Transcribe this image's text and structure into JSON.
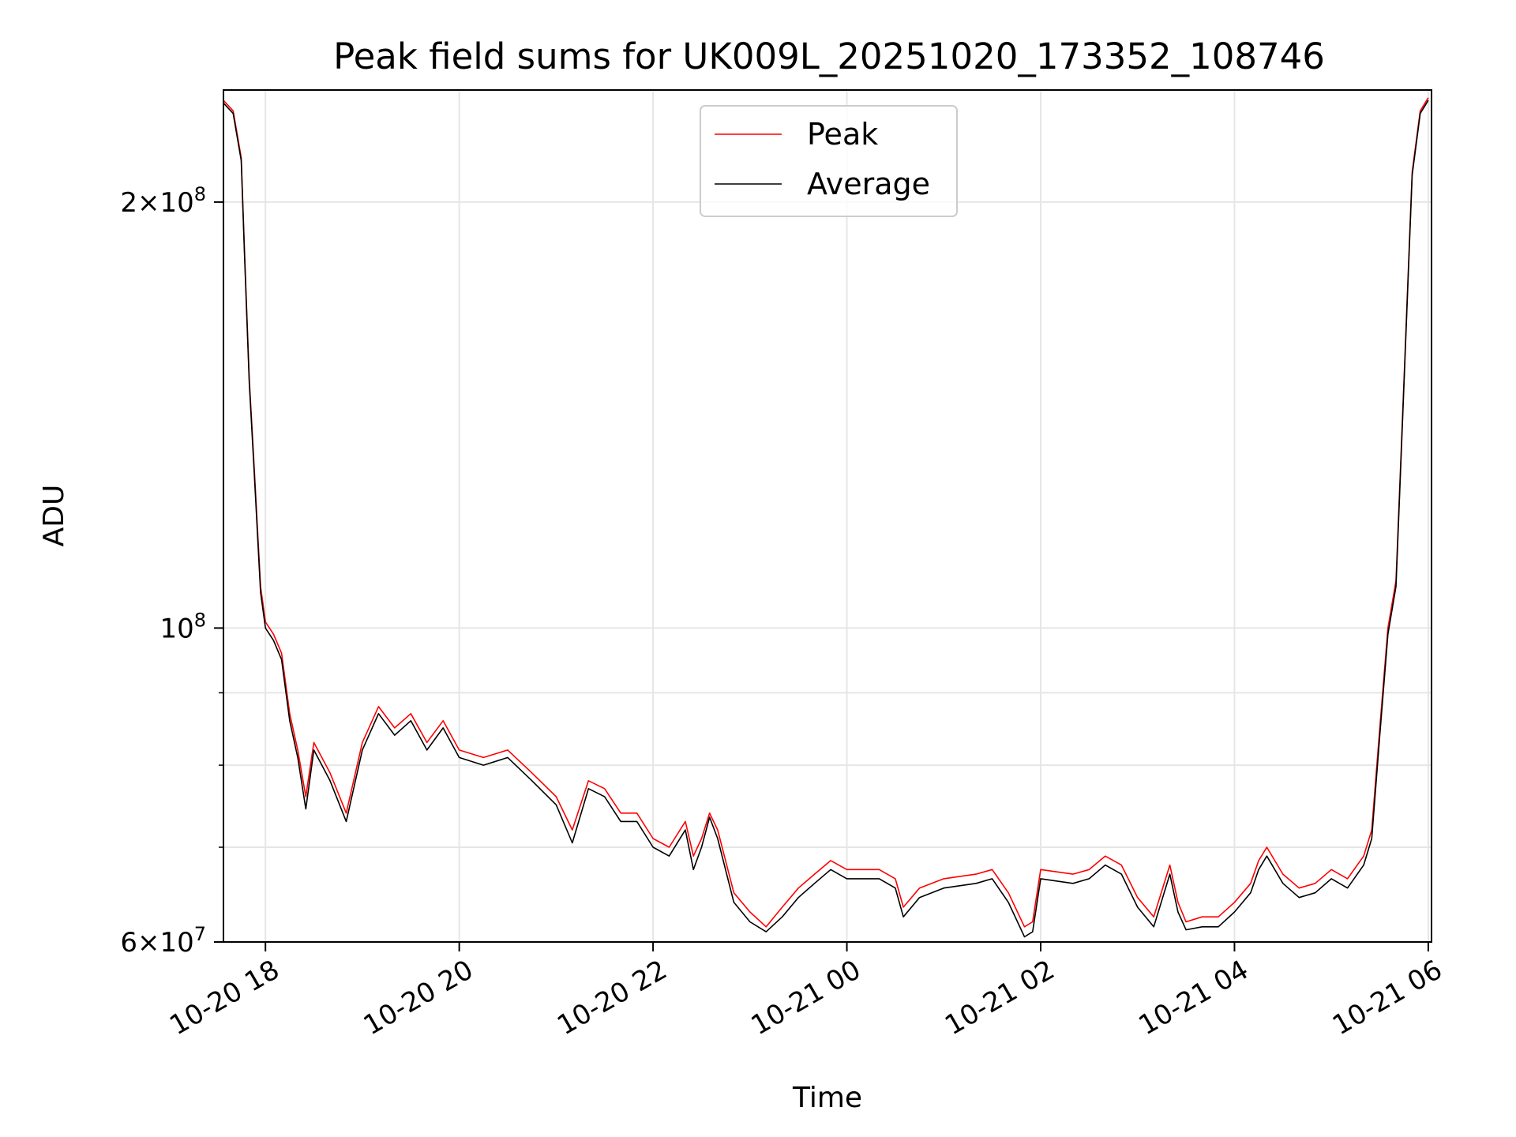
{
  "chart_data": {
    "type": "line",
    "title": "Peak field sums for UK009L_20251020_173352_108746",
    "xlabel": "Time",
    "ylabel": "ADU",
    "y_scale": "log",
    "ylim": [
      60000000,
      240000000
    ],
    "xlim": [
      "2025-10-20 17:34",
      "2025-10-21 06:02"
    ],
    "grid": true,
    "legend_position": "top-center",
    "x_ticks": [
      {
        "value": "2025-10-20 18:00",
        "label": "10-20 18"
      },
      {
        "value": "2025-10-20 20:00",
        "label": "10-20 20"
      },
      {
        "value": "2025-10-20 22:00",
        "label": "10-20 22"
      },
      {
        "value": "2025-10-21 00:00",
        "label": "10-21 00"
      },
      {
        "value": "2025-10-21 02:00",
        "label": "10-21 02"
      },
      {
        "value": "2025-10-21 04:00",
        "label": "10-21 04"
      },
      {
        "value": "2025-10-21 06:00",
        "label": "10-21 06"
      }
    ],
    "y_ticks": [
      {
        "value": 60000000,
        "label": "6×10",
        "exp": "7"
      },
      {
        "value": 100000000,
        "label": "10",
        "exp": "8"
      },
      {
        "value": 200000000,
        "label": "2×10",
        "exp": "8"
      }
    ],
    "y_minor_ticks": [
      70000000,
      80000000,
      90000000
    ],
    "series": [
      {
        "name": "Peak",
        "color": "#ff0000",
        "points": [
          [
            "2025-10-20 17:34",
            236000000
          ],
          [
            "2025-10-20 17:40",
            232000000
          ],
          [
            "2025-10-20 17:45",
            215000000
          ],
          [
            "2025-10-20 17:47",
            185000000
          ],
          [
            "2025-10-20 17:50",
            150000000
          ],
          [
            "2025-10-20 17:53",
            130000000
          ],
          [
            "2025-10-20 17:57",
            107000000
          ],
          [
            "2025-10-20 18:00",
            101000000
          ],
          [
            "2025-10-20 18:05",
            99000000
          ],
          [
            "2025-10-20 18:10",
            96000000
          ],
          [
            "2025-10-20 18:15",
            87000000
          ],
          [
            "2025-10-20 18:20",
            82000000
          ],
          [
            "2025-10-20 18:25",
            76000000
          ],
          [
            "2025-10-20 18:30",
            83000000
          ],
          [
            "2025-10-20 18:40",
            79000000
          ],
          [
            "2025-10-20 18:50",
            74000000
          ],
          [
            "2025-10-20 19:00",
            83000000
          ],
          [
            "2025-10-20 19:10",
            88000000
          ],
          [
            "2025-10-20 19:20",
            85000000
          ],
          [
            "2025-10-20 19:30",
            87000000
          ],
          [
            "2025-10-20 19:40",
            83000000
          ],
          [
            "2025-10-20 19:50",
            86000000
          ],
          [
            "2025-10-20 20:00",
            82000000
          ],
          [
            "2025-10-20 20:15",
            81000000
          ],
          [
            "2025-10-20 20:30",
            82000000
          ],
          [
            "2025-10-20 20:45",
            79000000
          ],
          [
            "2025-10-20 21:00",
            76000000
          ],
          [
            "2025-10-20 21:10",
            72000000
          ],
          [
            "2025-10-20 21:20",
            78000000
          ],
          [
            "2025-10-20 21:30",
            77000000
          ],
          [
            "2025-10-20 21:40",
            74000000
          ],
          [
            "2025-10-20 21:50",
            74000000
          ],
          [
            "2025-10-20 22:00",
            71000000
          ],
          [
            "2025-10-20 22:10",
            70000000
          ],
          [
            "2025-10-20 22:20",
            73000000
          ],
          [
            "2025-10-20 22:25",
            69000000
          ],
          [
            "2025-10-20 22:30",
            71000000
          ],
          [
            "2025-10-20 22:35",
            74000000
          ],
          [
            "2025-10-20 22:40",
            72000000
          ],
          [
            "2025-10-20 22:50",
            65000000
          ],
          [
            "2025-10-20 23:00",
            63000000
          ],
          [
            "2025-10-20 23:10",
            61500000
          ],
          [
            "2025-10-20 23:20",
            63500000
          ],
          [
            "2025-10-20 23:30",
            65500000
          ],
          [
            "2025-10-20 23:40",
            67000000
          ],
          [
            "2025-10-20 23:50",
            68500000
          ],
          [
            "2025-10-21 00:00",
            67500000
          ],
          [
            "2025-10-21 00:20",
            67500000
          ],
          [
            "2025-10-21 00:30",
            66500000
          ],
          [
            "2025-10-21 00:35",
            63500000
          ],
          [
            "2025-10-21 00:45",
            65500000
          ],
          [
            "2025-10-21 01:00",
            66500000
          ],
          [
            "2025-10-21 01:20",
            67000000
          ],
          [
            "2025-10-21 01:30",
            67500000
          ],
          [
            "2025-10-21 01:40",
            65000000
          ],
          [
            "2025-10-21 01:50",
            61500000
          ],
          [
            "2025-10-21 01:55",
            62000000
          ],
          [
            "2025-10-21 02:00",
            67500000
          ],
          [
            "2025-10-21 02:20",
            67000000
          ],
          [
            "2025-10-21 02:30",
            67500000
          ],
          [
            "2025-10-21 02:40",
            69000000
          ],
          [
            "2025-10-21 02:50",
            68000000
          ],
          [
            "2025-10-21 03:00",
            64500000
          ],
          [
            "2025-10-21 03:10",
            62500000
          ],
          [
            "2025-10-21 03:20",
            68000000
          ],
          [
            "2025-10-21 03:25",
            64000000
          ],
          [
            "2025-10-21 03:30",
            62000000
          ],
          [
            "2025-10-21 03:40",
            62500000
          ],
          [
            "2025-10-21 03:50",
            62500000
          ],
          [
            "2025-10-21 04:00",
            64000000
          ],
          [
            "2025-10-21 04:10",
            66000000
          ],
          [
            "2025-10-21 04:15",
            68500000
          ],
          [
            "2025-10-21 04:20",
            70000000
          ],
          [
            "2025-10-21 04:30",
            67000000
          ],
          [
            "2025-10-21 04:40",
            65500000
          ],
          [
            "2025-10-21 04:50",
            66000000
          ],
          [
            "2025-10-21 05:00",
            67500000
          ],
          [
            "2025-10-21 05:10",
            66500000
          ],
          [
            "2025-10-21 05:20",
            69000000
          ],
          [
            "2025-10-21 05:25",
            72000000
          ],
          [
            "2025-10-21 05:30",
            85000000
          ],
          [
            "2025-10-21 05:35",
            100000000
          ],
          [
            "2025-10-21 05:40",
            108000000
          ],
          [
            "2025-10-21 05:45",
            150000000
          ],
          [
            "2025-10-21 05:50",
            210000000
          ],
          [
            "2025-10-21 05:55",
            232000000
          ],
          [
            "2025-10-21 06:00",
            237000000
          ]
        ]
      },
      {
        "name": "Average",
        "color": "#000000",
        "points": [
          [
            "2025-10-20 17:34",
            235000000
          ],
          [
            "2025-10-20 17:40",
            231000000
          ],
          [
            "2025-10-20 17:45",
            214000000
          ],
          [
            "2025-10-20 17:47",
            184000000
          ],
          [
            "2025-10-20 17:50",
            149000000
          ],
          [
            "2025-10-20 17:53",
            129000000
          ],
          [
            "2025-10-20 17:57",
            106000000
          ],
          [
            "2025-10-20 18:00",
            100000000
          ],
          [
            "2025-10-20 18:05",
            98000000
          ],
          [
            "2025-10-20 18:10",
            95000000
          ],
          [
            "2025-10-20 18:15",
            86000000
          ],
          [
            "2025-10-20 18:20",
            81000000
          ],
          [
            "2025-10-20 18:25",
            74500000
          ],
          [
            "2025-10-20 18:30",
            82000000
          ],
          [
            "2025-10-20 18:40",
            78000000
          ],
          [
            "2025-10-20 18:50",
            73000000
          ],
          [
            "2025-10-20 19:00",
            82000000
          ],
          [
            "2025-10-20 19:10",
            87000000
          ],
          [
            "2025-10-20 19:20",
            84000000
          ],
          [
            "2025-10-20 19:30",
            86000000
          ],
          [
            "2025-10-20 19:40",
            82000000
          ],
          [
            "2025-10-20 19:50",
            85000000
          ],
          [
            "2025-10-20 20:00",
            81000000
          ],
          [
            "2025-10-20 20:15",
            80000000
          ],
          [
            "2025-10-20 20:30",
            81000000
          ],
          [
            "2025-10-20 20:45",
            78000000
          ],
          [
            "2025-10-20 21:00",
            75000000
          ],
          [
            "2025-10-20 21:10",
            70500000
          ],
          [
            "2025-10-20 21:20",
            77000000
          ],
          [
            "2025-10-20 21:30",
            76000000
          ],
          [
            "2025-10-20 21:40",
            73000000
          ],
          [
            "2025-10-20 21:50",
            73000000
          ],
          [
            "2025-10-20 22:00",
            70000000
          ],
          [
            "2025-10-20 22:10",
            69000000
          ],
          [
            "2025-10-20 22:20",
            72000000
          ],
          [
            "2025-10-20 22:25",
            67500000
          ],
          [
            "2025-10-20 22:30",
            70000000
          ],
          [
            "2025-10-20 22:35",
            73500000
          ],
          [
            "2025-10-20 22:40",
            71000000
          ],
          [
            "2025-10-20 22:50",
            64000000
          ],
          [
            "2025-10-20 23:00",
            62000000
          ],
          [
            "2025-10-20 23:10",
            61000000
          ],
          [
            "2025-10-20 23:20",
            62500000
          ],
          [
            "2025-10-20 23:30",
            64500000
          ],
          [
            "2025-10-20 23:40",
            66000000
          ],
          [
            "2025-10-20 23:50",
            67500000
          ],
          [
            "2025-10-21 00:00",
            66500000
          ],
          [
            "2025-10-21 00:20",
            66500000
          ],
          [
            "2025-10-21 00:30",
            65500000
          ],
          [
            "2025-10-21 00:35",
            62500000
          ],
          [
            "2025-10-21 00:45",
            64500000
          ],
          [
            "2025-10-21 01:00",
            65500000
          ],
          [
            "2025-10-21 01:20",
            66000000
          ],
          [
            "2025-10-21 01:30",
            66500000
          ],
          [
            "2025-10-21 01:40",
            64000000
          ],
          [
            "2025-10-21 01:50",
            60500000
          ],
          [
            "2025-10-21 01:55",
            61000000
          ],
          [
            "2025-10-21 02:00",
            66500000
          ],
          [
            "2025-10-21 02:20",
            66000000
          ],
          [
            "2025-10-21 02:30",
            66500000
          ],
          [
            "2025-10-21 02:40",
            68000000
          ],
          [
            "2025-10-21 02:50",
            67000000
          ],
          [
            "2025-10-21 03:00",
            63500000
          ],
          [
            "2025-10-21 03:10",
            61500000
          ],
          [
            "2025-10-21 03:20",
            67000000
          ],
          [
            "2025-10-21 03:25",
            63000000
          ],
          [
            "2025-10-21 03:30",
            61200000
          ],
          [
            "2025-10-21 03:40",
            61500000
          ],
          [
            "2025-10-21 03:50",
            61500000
          ],
          [
            "2025-10-21 04:00",
            63000000
          ],
          [
            "2025-10-21 04:10",
            65000000
          ],
          [
            "2025-10-21 04:15",
            67500000
          ],
          [
            "2025-10-21 04:20",
            69000000
          ],
          [
            "2025-10-21 04:30",
            66000000
          ],
          [
            "2025-10-21 04:40",
            64500000
          ],
          [
            "2025-10-21 04:50",
            65000000
          ],
          [
            "2025-10-21 05:00",
            66500000
          ],
          [
            "2025-10-21 05:10",
            65500000
          ],
          [
            "2025-10-21 05:20",
            68000000
          ],
          [
            "2025-10-21 05:25",
            71000000
          ],
          [
            "2025-10-21 05:30",
            84000000
          ],
          [
            "2025-10-21 05:35",
            99000000
          ],
          [
            "2025-10-21 05:40",
            107000000
          ],
          [
            "2025-10-21 05:45",
            149000000
          ],
          [
            "2025-10-21 05:50",
            209000000
          ],
          [
            "2025-10-21 05:55",
            231000000
          ],
          [
            "2025-10-21 06:00",
            236000000
          ]
        ]
      }
    ]
  }
}
